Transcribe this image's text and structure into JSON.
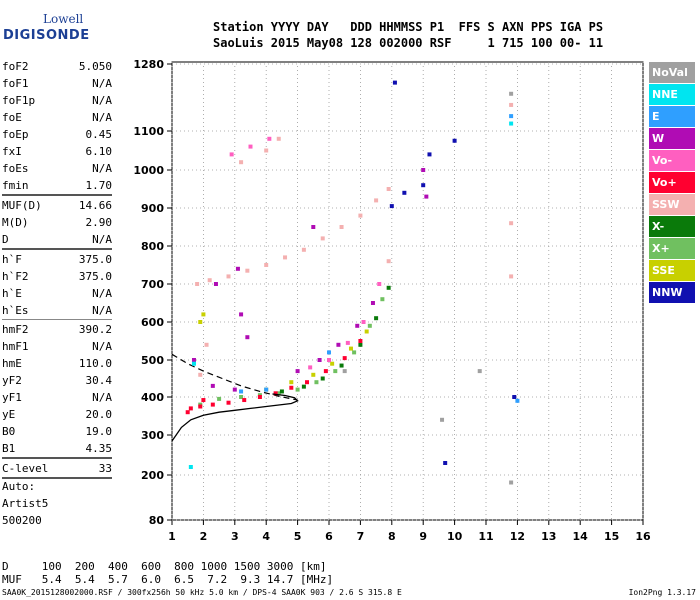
{
  "logo": {
    "name": "Lowell",
    "brand": "DIGISONDE"
  },
  "header": {
    "line1": "Station YYYY DAY   DDD HHMMSS P1  FFS S AXN PPS IGA PS",
    "line2": "SaoLuis 2015 May08 128 002000 RSF     1 715 100 00- 11"
  },
  "params": [
    {
      "k": "foF2",
      "v": "5.050"
    },
    {
      "k": "foF1",
      "v": "N/A"
    },
    {
      "k": "foF1p",
      "v": "N/A"
    },
    {
      "k": "foE",
      "v": "N/A"
    },
    {
      "k": "foEp",
      "v": "0.45"
    },
    {
      "k": "fxI",
      "v": "6.10"
    },
    {
      "k": "foEs",
      "v": "N/A"
    },
    {
      "k": "fmin",
      "v": "1.70"
    },
    {
      "k": "MUF(D)",
      "v": "14.66"
    },
    {
      "k": "M(D)",
      "v": "2.90"
    },
    {
      "k": "D",
      "v": "N/A"
    },
    {
      "k": "h`F",
      "v": "375.0"
    },
    {
      "k": "h`F2",
      "v": "375.0"
    },
    {
      "k": "h`E",
      "v": "N/A"
    },
    {
      "k": "h`Es",
      "v": "N/A"
    },
    {
      "k": "hmF2",
      "v": "390.2"
    },
    {
      "k": "hmF1",
      "v": "N/A"
    },
    {
      "k": "hmE",
      "v": "110.0"
    },
    {
      "k": "yF2",
      "v": "30.4"
    },
    {
      "k": "yF1",
      "v": "N/A"
    },
    {
      "k": "yE",
      "v": "20.0"
    },
    {
      "k": "B0",
      "v": "19.0"
    },
    {
      "k": "B1",
      "v": "4.35"
    },
    {
      "k": "C-level",
      "v": "33"
    }
  ],
  "auto": [
    "Auto:",
    "Artist5",
    "500200"
  ],
  "legend": [
    {
      "label": "NoVal",
      "color": "#a0a0a0"
    },
    {
      "label": "NNE",
      "color": "#00e5f0"
    },
    {
      "label": "E",
      "color": "#2f9fff"
    },
    {
      "label": "W",
      "color": "#b00cb4"
    },
    {
      "label": "Vo-",
      "color": "#ff5fc0"
    },
    {
      "label": "Vo+",
      "color": "#ff0030"
    },
    {
      "label": "SSW",
      "color": "#f4b0b0"
    },
    {
      "label": "X-",
      "color": "#0a7a0a"
    },
    {
      "label": "X+",
      "color": "#70c060"
    },
    {
      "label": "SSE",
      "color": "#c8d000"
    },
    {
      "label": "NNW",
      "color": "#1010b0"
    }
  ],
  "bottom": {
    "d_row": "D     100  200  400  600  800 1000 1500 3000 [km]",
    "muf_row": "MUF   5.4  5.4  5.7  6.0  6.5  7.2  9.3 14.7 [MHz]"
  },
  "footer": "SAA0K_2015128002000.RSF / 300fx256h 50 kHz 5.0 km / DPS-4 SAA0K 903 / 2.6 S 315.8 E",
  "version": "Ion2Png 1.3.17",
  "chart_data": {
    "type": "scatter",
    "xlim": [
      1,
      16
    ],
    "ylim": [
      80,
      1280
    ],
    "x_ticks": [
      "1",
      "2",
      "3",
      "4",
      "5",
      "6",
      "7",
      "8",
      "9",
      "10",
      "11",
      "12",
      "13",
      "14",
      "15",
      "16"
    ],
    "y_ticks": [
      "80",
      "200",
      "300",
      "400",
      "500",
      "600",
      "700",
      "800",
      "900",
      "1000",
      "1100",
      "1280"
    ],
    "series": [
      {
        "name": "X+",
        "color": "#70c060",
        "points": [
          [
            1.9,
            380
          ],
          [
            2.5,
            395
          ],
          [
            3.2,
            400
          ],
          [
            3.8,
            405
          ],
          [
            4.4,
            410
          ],
          [
            5.0,
            420
          ],
          [
            5.6,
            440
          ],
          [
            6.2,
            470
          ],
          [
            6.8,
            520
          ],
          [
            7.3,
            590
          ],
          [
            7.7,
            660
          ]
        ]
      },
      {
        "name": "X-",
        "color": "#0a7a0a",
        "points": [
          [
            4.5,
            415
          ],
          [
            5.2,
            428
          ],
          [
            5.8,
            450
          ],
          [
            6.4,
            485
          ],
          [
            7.0,
            540
          ],
          [
            7.5,
            610
          ],
          [
            7.9,
            690
          ]
        ]
      },
      {
        "name": "SSE",
        "color": "#c8d000",
        "points": [
          [
            1.9,
            600
          ],
          [
            2.0,
            620
          ],
          [
            4.0,
            420
          ],
          [
            4.8,
            440
          ],
          [
            5.5,
            460
          ],
          [
            6.1,
            490
          ],
          [
            6.7,
            530
          ],
          [
            7.2,
            575
          ]
        ]
      },
      {
        "name": "W",
        "color": "#b00cb4",
        "points": [
          [
            1.7,
            500
          ],
          [
            2.3,
            430
          ],
          [
            3.0,
            420
          ],
          [
            5.0,
            470
          ],
          [
            5.7,
            500
          ],
          [
            6.3,
            540
          ],
          [
            6.9,
            590
          ],
          [
            7.4,
            650
          ],
          [
            3.2,
            620
          ],
          [
            3.4,
            560
          ],
          [
            2.4,
            700
          ],
          [
            3.1,
            740
          ],
          [
            5.5,
            850
          ],
          [
            9.0,
            1000
          ],
          [
            9.1,
            930
          ]
        ]
      },
      {
        "name": "Vo+",
        "color": "#ff0030",
        "points": [
          [
            1.6,
            370
          ],
          [
            1.9,
            375
          ],
          [
            2.3,
            380
          ],
          [
            2.8,
            385
          ],
          [
            3.3,
            392
          ],
          [
            3.8,
            400
          ],
          [
            4.3,
            410
          ],
          [
            4.8,
            425
          ],
          [
            5.3,
            440
          ],
          [
            5.9,
            470
          ],
          [
            6.5,
            505
          ],
          [
            7.0,
            550
          ],
          [
            1.5,
            360
          ],
          [
            2.0,
            392
          ]
        ]
      },
      {
        "name": "Vo-",
        "color": "#ff5fc0",
        "points": [
          [
            5.4,
            480
          ],
          [
            6.0,
            500
          ],
          [
            6.6,
            545
          ],
          [
            7.1,
            600
          ],
          [
            7.6,
            700
          ],
          [
            2.9,
            1040
          ],
          [
            3.5,
            1060
          ],
          [
            4.1,
            1080
          ]
        ]
      },
      {
        "name": "SSW",
        "color": "#f4b0b0",
        "points": [
          [
            1.8,
            700
          ],
          [
            2.2,
            710
          ],
          [
            2.8,
            720
          ],
          [
            3.4,
            735
          ],
          [
            4.0,
            750
          ],
          [
            4.6,
            770
          ],
          [
            5.2,
            790
          ],
          [
            5.8,
            820
          ],
          [
            6.4,
            850
          ],
          [
            7.0,
            880
          ],
          [
            7.5,
            920
          ],
          [
            7.9,
            950
          ],
          [
            3.2,
            1020
          ],
          [
            4.0,
            1050
          ],
          [
            4.4,
            1080
          ],
          [
            1.9,
            460
          ],
          [
            2.1,
            540
          ],
          [
            7.9,
            760
          ],
          [
            11.8,
            1170
          ],
          [
            11.8,
            860
          ],
          [
            11.8,
            720
          ]
        ]
      },
      {
        "name": "E",
        "color": "#2f9fff",
        "points": [
          [
            3.2,
            415
          ],
          [
            4.0,
            420
          ],
          [
            6.0,
            520
          ],
          [
            11.8,
            1140
          ],
          [
            12.0,
            390
          ]
        ]
      },
      {
        "name": "NNE",
        "color": "#00e5f0",
        "points": [
          [
            1.7,
            490
          ],
          [
            11.8,
            1120
          ],
          [
            1.6,
            220
          ]
        ]
      },
      {
        "name": "NNW",
        "color": "#1010b0",
        "points": [
          [
            8.1,
            1230
          ],
          [
            8.0,
            905
          ],
          [
            9.0,
            960
          ],
          [
            9.2,
            1040
          ],
          [
            9.7,
            230
          ],
          [
            10.0,
            1075
          ],
          [
            11.9,
            400
          ],
          [
            8.4,
            940
          ]
        ]
      },
      {
        "name": "NoVal",
        "color": "#a0a0a0",
        "points": [
          [
            6.5,
            470
          ],
          [
            11.8,
            1200
          ],
          [
            9.6,
            340
          ],
          [
            10.8,
            470
          ],
          [
            11.8,
            180
          ]
        ]
      }
    ],
    "profile_curve": [
      [
        1.0,
        285
      ],
      [
        1.3,
        320
      ],
      [
        1.6,
        340
      ],
      [
        2.0,
        352
      ],
      [
        2.5,
        360
      ],
      [
        3.0,
        365
      ],
      [
        3.5,
        370
      ],
      [
        4.0,
        375
      ],
      [
        4.5,
        380
      ],
      [
        4.8,
        383
      ],
      [
        5.0,
        390
      ],
      [
        4.9,
        398
      ],
      [
        4.6,
        404
      ],
      [
        4.2,
        408
      ]
    ],
    "dashed_trace": [
      [
        1.0,
        515
      ],
      [
        1.5,
        490
      ],
      [
        2.0,
        470
      ],
      [
        2.6,
        450
      ],
      [
        3.2,
        430
      ],
      [
        3.8,
        415
      ],
      [
        4.4,
        402
      ],
      [
        5.0,
        392
      ]
    ]
  }
}
